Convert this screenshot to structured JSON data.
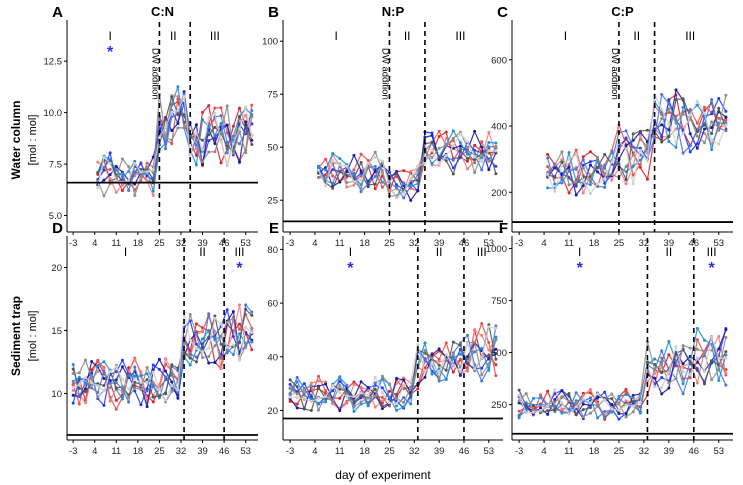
{
  "figure": {
    "x_axis_label": "day of experiment",
    "row_labels": [
      {
        "title": "Water column",
        "unit": "[mol : mol]"
      },
      {
        "title": "Sediment trap",
        "unit": "[mol : mol]"
      }
    ],
    "dw_addition_label": "DW addition",
    "star_symbol": "*",
    "series_colors": [
      "#d62728",
      "#e85050",
      "#f08080",
      "#1f3cff",
      "#1a1aa8",
      "#4477dd",
      "#1e90e0",
      "#555555",
      "#8c8c8c",
      "#cfcfcf"
    ]
  },
  "chart_data": [
    {
      "id": "A",
      "title": "C:N",
      "type": "line",
      "row": 0,
      "col": 0,
      "xticks": [
        -3,
        4,
        11,
        18,
        25,
        32,
        39,
        46,
        53
      ],
      "xlim": [
        -5,
        57
      ],
      "yticks": [
        5.0,
        7.5,
        10.0,
        12.5
      ],
      "ytick_labels": [
        "5.0",
        "7.5",
        "10.0",
        "12.5"
      ],
      "ylim": [
        4.2,
        14.5
      ],
      "baseline": 6.6,
      "x_start": 5,
      "dashed_lines": [
        25,
        35
      ],
      "phases": [
        {
          "label": "I",
          "x": 9
        },
        {
          "label": "II",
          "x": 29.5
        },
        {
          "label": "III",
          "x": 43
        }
      ],
      "stars": [
        {
          "x": 9
        }
      ],
      "dw_label_x": 25,
      "segments": [
        {
          "start": 5,
          "end": 25,
          "level": 6.9,
          "amp": 1.1,
          "noise": 0.6
        },
        {
          "start": 25,
          "end": 35,
          "level": 9.7,
          "amp": 1.6,
          "noise": 0.9
        },
        {
          "start": 35,
          "end": 56,
          "level": 8.9,
          "amp": 1.4,
          "noise": 0.9
        }
      ]
    },
    {
      "id": "B",
      "title": "N:P",
      "type": "line",
      "row": 0,
      "col": 1,
      "xticks": [
        -3,
        4,
        11,
        18,
        25,
        32,
        39,
        46,
        53
      ],
      "xlim": [
        -5,
        57
      ],
      "yticks": [
        25,
        50,
        75,
        100
      ],
      "ytick_labels": [
        "25",
        "50",
        "75",
        "100"
      ],
      "ylim": [
        10,
        110
      ],
      "baseline": 15,
      "x_start": 5,
      "dashed_lines": [
        25,
        35
      ],
      "phases": [
        {
          "label": "I",
          "x": 10
        },
        {
          "label": "II",
          "x": 30
        },
        {
          "label": "III",
          "x": 45
        }
      ],
      "stars": [],
      "dw_label_x": 25,
      "segments": [
        {
          "start": 5,
          "end": 25,
          "level": 38,
          "amp": 8,
          "noise": 6
        },
        {
          "start": 25,
          "end": 35,
          "level": 33,
          "amp": 7,
          "noise": 5
        },
        {
          "start": 35,
          "end": 56,
          "level": 47,
          "amp": 9,
          "noise": 7
        }
      ]
    },
    {
      "id": "C",
      "title": "C:P",
      "type": "line",
      "row": 0,
      "col": 2,
      "xticks": [
        -3,
        4,
        11,
        18,
        25,
        32,
        39,
        46,
        53
      ],
      "xlim": [
        -5,
        57
      ],
      "yticks": [
        200,
        400,
        600
      ],
      "ytick_labels": [
        "200",
        "400",
        "600"
      ],
      "ylim": [
        80,
        720
      ],
      "baseline": 110,
      "x_start": 5,
      "dashed_lines": [
        25,
        35
      ],
      "phases": [
        {
          "label": "I",
          "x": 10
        },
        {
          "label": "II",
          "x": 30
        },
        {
          "label": "III",
          "x": 45
        }
      ],
      "stars": [],
      "dw_label_x": 25,
      "segments": [
        {
          "start": 5,
          "end": 25,
          "level": 260,
          "amp": 60,
          "noise": 40
        },
        {
          "start": 25,
          "end": 35,
          "level": 320,
          "amp": 90,
          "noise": 50
        },
        {
          "start": 35,
          "end": 56,
          "level": 410,
          "amp": 80,
          "noise": 60
        }
      ]
    },
    {
      "id": "D",
      "title": "",
      "type": "line",
      "row": 1,
      "col": 0,
      "xticks": [
        -3,
        4,
        11,
        18,
        25,
        32,
        39,
        46,
        53
      ],
      "xlim": [
        -5,
        57
      ],
      "yticks": [
        10,
        15,
        20
      ],
      "ytick_labels": [
        "10",
        "15",
        "20"
      ],
      "ylim": [
        6.3,
        22.5
      ],
      "baseline": 6.7,
      "x_start": -3,
      "dashed_lines": [
        33,
        46
      ],
      "phases": [
        {
          "label": "I",
          "x": 14
        },
        {
          "label": "II",
          "x": 39
        },
        {
          "label": "III",
          "x": 51
        }
      ],
      "stars": [
        {
          "x": 51
        }
      ],
      "dw_label_x": null,
      "segments": [
        {
          "start": -3,
          "end": 33,
          "level": 10.8,
          "amp": 1.8,
          "noise": 1.2
        },
        {
          "start": 33,
          "end": 46,
          "level": 14.2,
          "amp": 2.0,
          "noise": 1.3
        },
        {
          "start": 46,
          "end": 56,
          "level": 14.5,
          "amp": 2.2,
          "noise": 1.5
        }
      ]
    },
    {
      "id": "E",
      "title": "",
      "type": "line",
      "row": 1,
      "col": 1,
      "xticks": [
        -3,
        4,
        11,
        18,
        25,
        32,
        39,
        46,
        53
      ],
      "xlim": [
        -5,
        57
      ],
      "yticks": [
        20,
        40,
        60,
        80
      ],
      "ytick_labels": [
        "20",
        "40",
        "60",
        "80"
      ],
      "ylim": [
        9,
        85
      ],
      "baseline": 17,
      "x_start": -3,
      "dashed_lines": [
        33,
        46
      ],
      "phases": [
        {
          "label": "I",
          "x": 14
        },
        {
          "label": "II",
          "x": 39
        },
        {
          "label": "III",
          "x": 51
        }
      ],
      "stars": [
        {
          "x": 14
        }
      ],
      "dw_label_x": null,
      "segments": [
        {
          "start": -3,
          "end": 33,
          "level": 26,
          "amp": 6,
          "noise": 4
        },
        {
          "start": 33,
          "end": 46,
          "level": 38,
          "amp": 8,
          "noise": 6
        },
        {
          "start": 46,
          "end": 56,
          "level": 42,
          "amp": 9,
          "noise": 7
        }
      ]
    },
    {
      "id": "F",
      "title": "",
      "type": "line",
      "row": 1,
      "col": 2,
      "xticks": [
        -3,
        4,
        11,
        18,
        25,
        32,
        39,
        46,
        53
      ],
      "xlim": [
        -5,
        57
      ],
      "yticks": [
        250,
        500,
        750,
        1000
      ],
      "ytick_labels": [
        "250",
        "500",
        "750",
        "1000"
      ],
      "ylim": [
        80,
        1060
      ],
      "baseline": 110,
      "x_start": -3,
      "dashed_lines": [
        33,
        46
      ],
      "phases": [
        {
          "label": "I",
          "x": 14
        },
        {
          "label": "II",
          "x": 39
        },
        {
          "label": "III",
          "x": 51
        }
      ],
      "stars": [
        {
          "x": 14
        },
        {
          "x": 51
        }
      ],
      "dw_label_x": null,
      "segments": [
        {
          "start": -3,
          "end": 33,
          "level": 250,
          "amp": 70,
          "noise": 40
        },
        {
          "start": 33,
          "end": 46,
          "level": 430,
          "amp": 120,
          "noise": 80
        },
        {
          "start": 46,
          "end": 56,
          "level": 500,
          "amp": 140,
          "noise": 100
        }
      ]
    }
  ]
}
